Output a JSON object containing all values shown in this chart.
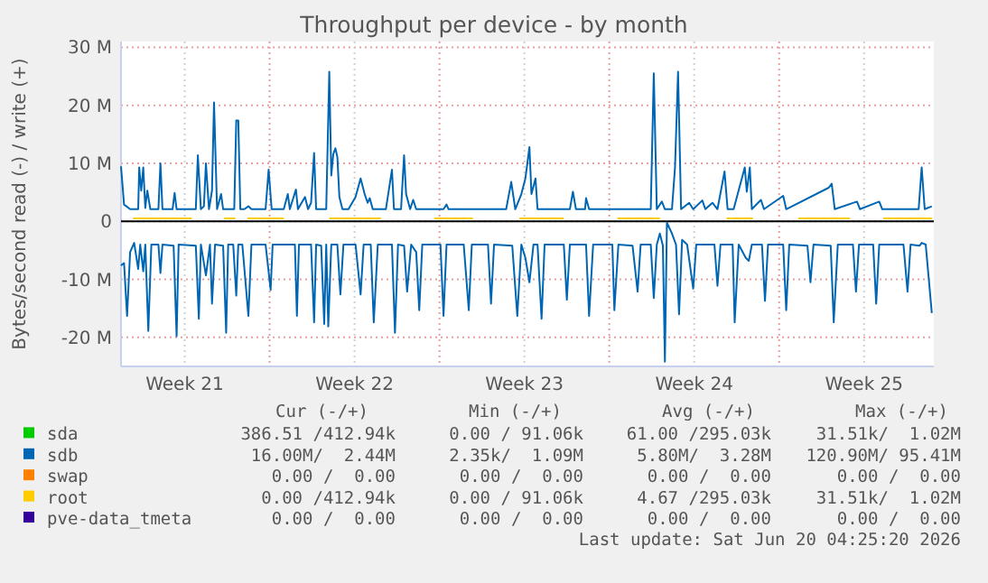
{
  "chart_data": {
    "type": "line",
    "title": "Throughput per device - by month",
    "ylabel": "Bytes/second read (-) / write (+)",
    "xlim": [
      "2026-05-18T21:00",
      "2026-06-21T09:00"
    ],
    "xticks": [
      {
        "value": "2026-05-21T12:00",
        "label": "Week 21"
      },
      {
        "value": "2026-05-25T00:00",
        "label": null
      },
      {
        "value": "2026-05-28T12:00",
        "label": "Week 22"
      },
      {
        "value": "2026-06-01T00:00",
        "label": null
      },
      {
        "value": "2026-06-04T12:00",
        "label": "Week 23"
      },
      {
        "value": "2026-06-08T00:00",
        "label": null
      },
      {
        "value": "2026-06-11T12:00",
        "label": "Week 24"
      },
      {
        "value": "2026-06-15T00:00",
        "label": null
      },
      {
        "value": "2026-06-18T12:00",
        "label": "Week 25"
      }
    ],
    "ylim": [
      -25,
      31
    ],
    "yticks": [
      {
        "value": -20,
        "label": "-20 M"
      },
      {
        "value": -10,
        "label": "-10 M"
      },
      0,
      {
        "value": 10,
        "label": "10 M"
      },
      {
        "value": 20,
        "label": "20 M"
      },
      {
        "value": 30,
        "label": "30 M"
      }
    ],
    "grid": true,
    "legend": "bottom",
    "ref_lines": [
      {
        "axis": "y",
        "value": 0,
        "color": "#000000"
      }
    ],
    "series": [
      {
        "name": "sda",
        "color": "#00cc00"
      },
      {
        "name": "sdb",
        "color": "#0066b3",
        "x": [
          "2026-05-18T21:00",
          "2026-05-19T00:00",
          "2026-05-19T06:00",
          "2026-05-19T14:00",
          "2026-05-19T15:00",
          "2026-05-19T17:00",
          "2026-05-19T19:00",
          "2026-05-19T21:00",
          "2026-05-19T23:00",
          "2026-05-20T02:00",
          "2026-05-20T10:00",
          "2026-05-20T12:00",
          "2026-05-20T14:00",
          "2026-05-21T00:00",
          "2026-05-21T02:00",
          "2026-05-21T04:00",
          "2026-05-21T23:00",
          "2026-05-22T01:00",
          "2026-05-22T04:00",
          "2026-05-22T07:00",
          "2026-05-22T09:00",
          "2026-05-22T12:00",
          "2026-05-22T15:00",
          "2026-05-22T17:00",
          "2026-05-22T20:00",
          "2026-05-23T00:00",
          "2026-05-23T02:00",
          "2026-05-23T13:00",
          "2026-05-23T15:00",
          "2026-05-23T17:00",
          "2026-05-23T19:00",
          "2026-05-23T23:00",
          "2026-05-24T03:00",
          "2026-05-24T06:00",
          "2026-05-24T20:00",
          "2026-05-24T23:00",
          "2026-05-25T02:00",
          "2026-05-25T14:00",
          "2026-05-25T18:00",
          "2026-05-25T20:00",
          "2026-05-26T02:00",
          "2026-05-26T04:00",
          "2026-05-26T11:00",
          "2026-05-26T14:00",
          "2026-05-26T17:00",
          "2026-05-26T20:00",
          "2026-05-26T22:00",
          "2026-05-27T08:00",
          "2026-05-27T11:00",
          "2026-05-27T13:00",
          "2026-05-27T15:00",
          "2026-05-27T17:00",
          "2026-05-27T19:00",
          "2026-05-27T21:00",
          "2026-05-28T00:00",
          "2026-05-28T06:00",
          "2026-05-28T13:00",
          "2026-05-28T18:00",
          "2026-05-28T22:00",
          "2026-05-29T01:00",
          "2026-05-29T03:00",
          "2026-05-29T06:00",
          "2026-05-29T19:00",
          "2026-05-30T01:00",
          "2026-05-30T03:00",
          "2026-05-30T10:00",
          "2026-05-30T13:00",
          "2026-05-30T15:00",
          "2026-05-30T19:00",
          "2026-05-30T22:00",
          "2026-05-31T01:00",
          "2026-06-01T04:00",
          "2026-06-01T07:00",
          "2026-06-01T09:00",
          "2026-06-02T12:00",
          "2026-06-03T00:00",
          "2026-06-03T18:00",
          "2026-06-03T23:00",
          "2026-06-04T03:00",
          "2026-06-04T09:00",
          "2026-06-04T13:00",
          "2026-06-04T17:00",
          "2026-06-04T19:00",
          "2026-06-04T23:00",
          "2026-06-05T01:00",
          "2026-06-06T09:00",
          "2026-06-06T12:00",
          "2026-06-06T15:00",
          "2026-06-07T00:00",
          "2026-06-07T01:00",
          "2026-06-07T04:00",
          "2026-06-09T17:00",
          "2026-06-09T20:00",
          "2026-06-09T23:00",
          "2026-06-10T04:00",
          "2026-06-10T07:00",
          "2026-06-10T14:00",
          "2026-06-10T17:00",
          "2026-06-10T20:00",
          "2026-06-10T23:00",
          "2026-06-11T07:00",
          "2026-06-11T11:00",
          "2026-06-11T20:00",
          "2026-06-11T23:00",
          "2026-06-12T06:00",
          "2026-06-12T11:00",
          "2026-06-12T18:00",
          "2026-06-12T21:00",
          "2026-06-13T03:00",
          "2026-06-13T14:00",
          "2026-06-13T16:00",
          "2026-06-13T19:00",
          "2026-06-13T21:00",
          "2026-06-14T06:00",
          "2026-06-14T09:00",
          "2026-06-15T04:00",
          "2026-06-15T07:00",
          "2026-06-17T01:00",
          "2026-06-17T04:00",
          "2026-06-17T07:00",
          "2026-06-18T05:00",
          "2026-06-18T08:00",
          "2026-06-19T03:00",
          "2026-06-19T06:00",
          "2026-06-20T18:00",
          "2026-06-20T21:00",
          "2026-06-21T00:00",
          "2026-06-21T07:00"
        ],
        "values": [
          9.5,
          2.9,
          2.1,
          2.1,
          9.3,
          5.3,
          9.3,
          2.3,
          5.3,
          2.1,
          2.1,
          10,
          2.1,
          2.1,
          4.9,
          2.1,
          2.1,
          11.4,
          2.1,
          2.6,
          10,
          2.1,
          5.3,
          20.5,
          2.1,
          4.7,
          2.1,
          2.1,
          17.4,
          17.4,
          2.1,
          2.1,
          2.6,
          2.1,
          2.1,
          8.9,
          2.1,
          2.1,
          4.7,
          2.1,
          5.5,
          2.1,
          4.2,
          2.1,
          3.2,
          11.8,
          2.1,
          2.1,
          25.8,
          7.9,
          11.6,
          12.6,
          11.1,
          4.2,
          2.1,
          2.1,
          4.2,
          7.4,
          4.7,
          3.2,
          4,
          2.1,
          2.1,
          8.9,
          2.1,
          2.1,
          11.4,
          4.7,
          2.1,
          3.7,
          2.1,
          2.1,
          2.9,
          2.1,
          2.1,
          2.1,
          2.1,
          6.8,
          2.1,
          4.7,
          7.4,
          12.8,
          4.7,
          7.4,
          2.1,
          2.1,
          5.1,
          2.1,
          2.1,
          4,
          2.1,
          2.1,
          25.5,
          2.1,
          3.4,
          2.1,
          2.1,
          9.3,
          25.8,
          2.1,
          3.2,
          2.1,
          3.6,
          2.1,
          3.2,
          2.1,
          8.6,
          2.1,
          2.1,
          9.3,
          5.1,
          9.3,
          2.1,
          3.7,
          2.1,
          4.4,
          2.1,
          5.8,
          6.5,
          2.1,
          3.4,
          2.1,
          3.4,
          2.1,
          2.1,
          9.3,
          2.1,
          2.6
        ]
      },
      {
        "color": "#0066b3",
        "x": [
          "2026-05-18T21:00",
          "2026-05-19T00:00",
          "2026-05-19T03:00",
          "2026-05-19T06:00",
          "2026-05-19T10:00",
          "2026-05-19T14:00",
          "2026-05-19T16:00",
          "2026-05-19T19:00",
          "2026-05-19T21:00",
          "2026-05-20T00:00",
          "2026-05-20T03:00",
          "2026-05-20T10:00",
          "2026-05-20T12:00",
          "2026-05-20T14:00",
          "2026-05-21T01:00",
          "2026-05-21T04:00",
          "2026-05-21T06:00",
          "2026-05-21T23:00",
          "2026-05-22T02:00",
          "2026-05-22T04:00",
          "2026-05-22T07:00",
          "2026-05-22T09:00",
          "2026-05-22T13:00",
          "2026-05-22T15:00",
          "2026-05-22T18:00",
          "2026-05-23T02:00",
          "2026-05-23T05:00",
          "2026-05-23T07:00",
          "2026-05-23T12:00",
          "2026-05-23T15:00",
          "2026-05-23T17:00",
          "2026-05-23T21:00",
          "2026-05-24T03:00",
          "2026-05-24T06:00",
          "2026-05-24T20:00",
          "2026-05-25T01:00",
          "2026-05-25T03:00",
          "2026-05-26T01:00",
          "2026-05-26T03:00",
          "2026-05-26T05:00",
          "2026-05-26T17:00",
          "2026-05-26T20:00",
          "2026-05-26T22:00",
          "2026-05-27T03:00",
          "2026-05-27T06:00",
          "2026-05-27T08:00",
          "2026-05-27T10:00",
          "2026-05-27T13:00",
          "2026-05-27T19:00",
          "2026-05-27T22:00",
          "2026-05-28T01:00",
          "2026-05-28T13:00",
          "2026-05-28T18:00",
          "2026-05-28T21:00",
          "2026-05-29T04:00",
          "2026-05-29T07:00",
          "2026-05-29T11:00",
          "2026-05-30T01:00",
          "2026-05-30T04:00",
          "2026-05-30T07:00",
          "2026-05-30T13:00",
          "2026-05-30T16:00",
          "2026-05-30T20:00",
          "2026-05-31T01:00",
          "2026-05-31T04:00",
          "2026-05-31T07:00",
          "2026-06-01T01:00",
          "2026-06-01T04:00",
          "2026-06-01T07:00",
          "2026-06-02T00:00",
          "2026-06-02T05:00",
          "2026-06-02T08:00",
          "2026-06-02T12:00",
          "2026-06-03T00:00",
          "2026-06-03T03:00",
          "2026-06-03T06:00",
          "2026-06-04T00:00",
          "2026-06-04T05:00",
          "2026-06-04T09:00",
          "2026-06-04T13:00",
          "2026-06-04T17:00",
          "2026-06-04T21:00",
          "2026-06-05T01:00",
          "2026-06-05T05:00",
          "2026-06-05T08:00",
          "2026-06-06T03:00",
          "2026-06-06T06:00",
          "2026-06-06T09:00",
          "2026-06-07T01:00",
          "2026-06-07T04:00",
          "2026-06-07T08:00",
          "2026-06-08T03:00",
          "2026-06-08T05:00",
          "2026-06-08T09:00",
          "2026-06-08T23:00",
          "2026-06-09T04:00",
          "2026-06-09T07:00",
          "2026-06-09T17:00",
          "2026-06-09T20:00",
          "2026-06-09T23:00",
          "2026-06-10T02:00",
          "2026-06-10T05:00",
          "2026-06-10T07:00",
          "2026-06-10T09:00",
          "2026-06-10T14:00",
          "2026-06-10T18:00",
          "2026-06-10T21:00",
          "2026-06-11T00:00",
          "2026-06-11T05:00",
          "2026-06-11T11:00",
          "2026-06-11T14:00",
          "2026-06-12T08:00",
          "2026-06-12T11:00",
          "2026-06-12T14:00",
          "2026-06-13T02:00",
          "2026-06-13T04:00",
          "2026-06-13T08:00",
          "2026-06-13T15:00",
          "2026-06-13T18:00",
          "2026-06-13T21:00",
          "2026-06-14T07:00",
          "2026-06-14T10:00",
          "2026-06-14T13:00",
          "2026-06-15T04:00",
          "2026-06-15T07:00",
          "2026-06-15T10:00",
          "2026-06-16T04:00",
          "2026-06-16T07:00",
          "2026-06-16T10:00",
          "2026-06-17T03:00",
          "2026-06-17T06:00",
          "2026-06-17T10:00",
          "2026-06-18T01:00",
          "2026-06-18T04:00",
          "2026-06-18T07:00",
          "2026-06-18T21:00",
          "2026-06-19T00:00",
          "2026-06-19T03:00",
          "2026-06-20T03:00",
          "2026-06-20T07:00",
          "2026-06-20T10:00",
          "2026-06-20T19:00",
          "2026-06-20T21:00",
          "2026-06-21T01:00",
          "2026-06-21T07:00"
        ],
        "values": [
          -7.6,
          -7.2,
          -16.3,
          -5.3,
          -3.7,
          -8.2,
          -4,
          -8.6,
          -4,
          -18.9,
          -4,
          -4,
          -8.9,
          -4,
          -4.2,
          -19.8,
          -4,
          -4.2,
          -16.8,
          -4,
          -7.2,
          -9.3,
          -4,
          -14.2,
          -4,
          -4.2,
          -19.2,
          -4,
          -4,
          -12.8,
          -4,
          -4,
          -16.3,
          -4,
          -4,
          -11.8,
          -4,
          -4,
          -16.3,
          -4,
          -4,
          -17.4,
          -4,
          -4.2,
          -17.7,
          -4,
          -18.1,
          -4,
          -4,
          -12.6,
          -4,
          -4,
          -12.6,
          -4,
          -4,
          -17.4,
          -4,
          -4,
          -19.2,
          -4,
          -4.2,
          -12.1,
          -4,
          -5.3,
          -15.3,
          -4,
          -4,
          -16.3,
          -4,
          -4,
          -15.3,
          -4,
          -4,
          -4,
          -14.2,
          -4,
          -4.2,
          -16.3,
          -4,
          -6.3,
          -10.5,
          -4,
          -4,
          -16.8,
          -4,
          -4,
          -13.5,
          -4,
          -4,
          -16.3,
          -4,
          -4,
          -15.3,
          -4,
          -4.2,
          -12.1,
          -4,
          -4,
          -13.2,
          -4,
          -2.1,
          -4.2,
          -24.2,
          -0.2,
          -2.1,
          -4,
          -16,
          -3.2,
          -4,
          -11.6,
          -4,
          -4,
          -11.1,
          -4,
          -4,
          -17.4,
          -4,
          -6.3,
          -6.8,
          -4,
          -4,
          -13.7,
          -4,
          -4,
          -15.3,
          -4,
          -4.2,
          -10.5,
          -4,
          -4.2,
          -17.4,
          -4,
          -4,
          -12.1,
          -4,
          -4,
          -14.2,
          -4,
          -4,
          -12.1,
          -4,
          -4.2,
          -3.7,
          -4,
          -15.8
        ]
      },
      {
        "name": "swap",
        "color": "#ff8000"
      },
      {
        "name": "root",
        "color": "#ffcc00",
        "x": [
          "2026-05-19T09:00",
          "2026-05-21T19:00",
          "2026-05-21T21:00",
          "2026-05-23T03:00",
          "2026-05-23T14:00",
          "2026-05-23T21:00",
          "2026-05-24T02:00",
          "2026-05-25T14:00",
          "2026-05-25T21:00",
          "2026-05-27T11:00",
          "2026-05-29T14:00",
          "2026-05-29T21:00",
          "2026-05-31T19:00",
          "2026-06-02T09:00",
          "2026-06-02T21:00",
          "2026-06-04T07:00",
          "2026-06-06T03:00",
          "2026-06-06T21:00",
          "2026-06-08T08:00",
          "2026-06-10T02:00",
          "2026-06-10T21:00",
          "2026-06-12T20:00",
          "2026-06-13T22:00",
          "2026-06-14T21:00",
          "2026-06-15T19:00",
          "2026-06-17T22:00",
          "2026-06-18T21:00",
          "2026-06-19T07:00",
          "2026-06-21T07:00"
        ],
        "values": [
          0.5,
          0.5,
          null,
          0.5,
          0.5,
          null,
          0.5,
          0.5,
          null,
          0.5,
          0.5,
          null,
          0.5,
          0.5,
          null,
          0.5,
          0.5,
          null,
          0.5,
          0.5,
          null,
          0.5,
          0.5,
          null,
          0.5,
          0.5,
          null,
          0.5,
          0.5
        ]
      },
      {
        "name": "pve-data_tmeta",
        "color": "#330099"
      }
    ],
    "annotations": [
      "Cur (-/+)",
      "Min (-/+)",
      "Avg (-/+)",
      "Max (-/+)",
      "386.51 /412.94k",
      "0.00 / 91.06k",
      "61.00 /295.03k",
      "31.51k/  1.02M",
      "16.00M/  2.44M",
      "2.35k/  1.09M",
      "5.80M/  3.28M",
      "120.90M/ 95.41M",
      "0.00 /  0.00",
      "0.00 /  0.00",
      "0.00 /  0.00",
      "0.00 /  0.00",
      "0.00 /412.94k",
      "0.00 / 91.06k",
      "4.67 /295.03k",
      "31.51k/  1.02M",
      "0.00 /  0.00",
      "0.00 /  0.00",
      "0.00 /  0.00",
      "0.00 /  0.00",
      "Last update: Sat Jun 20 04:25:20 2026"
    ]
  }
}
